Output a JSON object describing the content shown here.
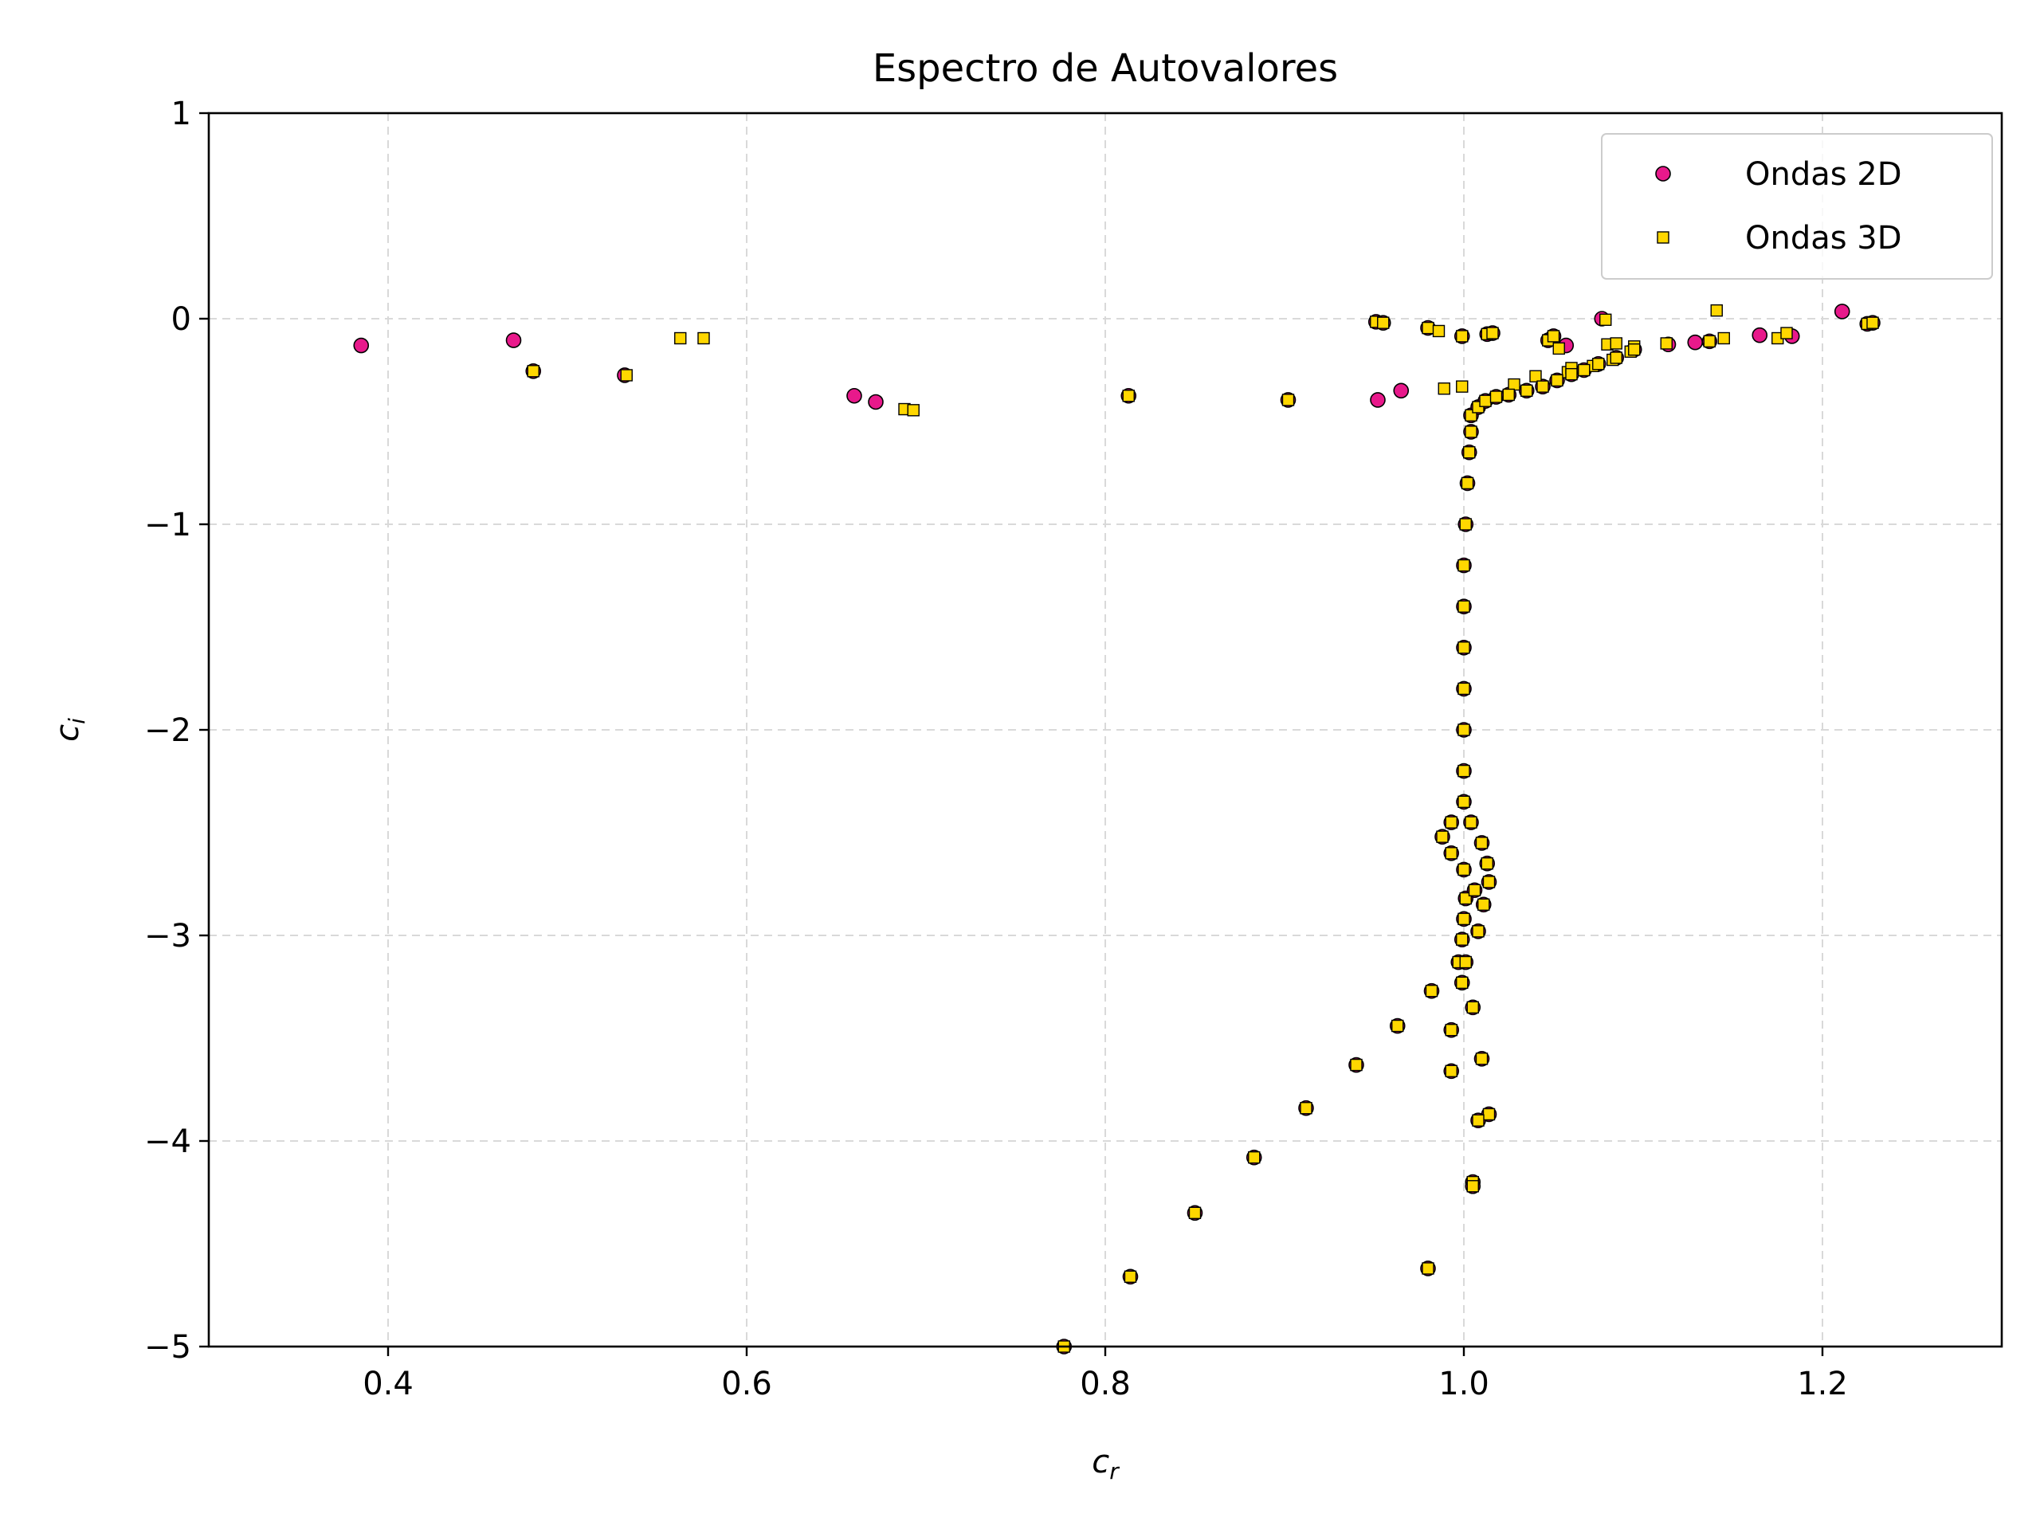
{
  "chart_data": {
    "type": "scatter",
    "title": "Espectro de Autovalores",
    "xlabel_base": "c",
    "xlabel_sub": "r",
    "ylabel_base": "c",
    "ylabel_sub": "i",
    "xlim": [
      0.3,
      1.3
    ],
    "ylim": [
      -5,
      1
    ],
    "xticks": [
      0.4,
      0.6,
      0.8,
      1.0,
      1.2
    ],
    "xtick_labels": [
      "0.4",
      "0.6",
      "0.8",
      "1.0",
      "1.2"
    ],
    "yticks": [
      -5,
      -4,
      -3,
      -2,
      -1,
      0,
      1
    ],
    "ytick_labels": [
      "−5",
      "−4",
      "−3",
      "−2",
      "−1",
      "0",
      "1"
    ],
    "grid": true,
    "legend_position": "top-right",
    "series": [
      {
        "name": "Ondas 2D",
        "marker": "circle",
        "color": "#e8198b",
        "edge_color": "#000000",
        "points": [
          [
            0.385,
            -0.13
          ],
          [
            0.47,
            -0.105
          ],
          [
            0.481,
            -0.255
          ],
          [
            0.532,
            -0.275
          ],
          [
            0.66,
            -0.375
          ],
          [
            0.672,
            -0.405
          ],
          [
            0.813,
            -0.375
          ],
          [
            0.902,
            -0.395
          ],
          [
            0.952,
            -0.395
          ],
          [
            0.965,
            -0.35
          ],
          [
            0.951,
            -0.015
          ],
          [
            0.955,
            -0.02
          ],
          [
            0.98,
            -0.045
          ],
          [
            0.999,
            -0.085
          ],
          [
            1.013,
            -0.075
          ],
          [
            1.016,
            -0.07
          ],
          [
            1.047,
            -0.105
          ],
          [
            1.05,
            -0.085
          ],
          [
            1.057,
            -0.13
          ],
          [
            1.077,
            0.0
          ],
          [
            1.114,
            -0.125
          ],
          [
            1.129,
            -0.115
          ],
          [
            1.137,
            -0.11
          ],
          [
            1.165,
            -0.08
          ],
          [
            1.183,
            -0.085
          ],
          [
            1.211,
            0.035
          ],
          [
            1.225,
            -0.025
          ],
          [
            1.228,
            -0.02
          ],
          [
            1.004,
            -0.47
          ],
          [
            1.008,
            -0.43
          ],
          [
            1.012,
            -0.4
          ],
          [
            1.018,
            -0.38
          ],
          [
            1.025,
            -0.37
          ],
          [
            1.035,
            -0.35
          ],
          [
            1.044,
            -0.33
          ],
          [
            1.052,
            -0.3
          ],
          [
            1.06,
            -0.27
          ],
          [
            1.067,
            -0.25
          ],
          [
            1.075,
            -0.22
          ],
          [
            1.085,
            -0.19
          ],
          [
            1.095,
            -0.15
          ],
          [
            1.004,
            -0.55
          ],
          [
            1.003,
            -0.65
          ],
          [
            1.002,
            -0.8
          ],
          [
            1.001,
            -1.0
          ],
          [
            1.0,
            -1.2
          ],
          [
            1.0,
            -1.4
          ],
          [
            1.0,
            -1.6
          ],
          [
            1.0,
            -1.8
          ],
          [
            1.0,
            -2.0
          ],
          [
            1.0,
            -2.2
          ],
          [
            1.0,
            -2.35
          ],
          [
            0.993,
            -2.45
          ],
          [
            0.988,
            -2.52
          ],
          [
            0.993,
            -2.6
          ],
          [
            1.0,
            -2.68
          ],
          [
            1.001,
            -2.82
          ],
          [
            1.0,
            -2.92
          ],
          [
            0.999,
            -3.02
          ],
          [
            0.997,
            -3.13
          ],
          [
            1.001,
            -3.13
          ],
          [
            0.999,
            -3.23
          ],
          [
            1.004,
            -2.45
          ],
          [
            1.01,
            -2.55
          ],
          [
            1.013,
            -2.65
          ],
          [
            1.014,
            -2.74
          ],
          [
            1.011,
            -2.85
          ],
          [
            1.008,
            -2.98
          ],
          [
            1.006,
            -2.78
          ],
          [
            0.982,
            -3.27
          ],
          [
            0.963,
            -3.44
          ],
          [
            0.94,
            -3.63
          ],
          [
            0.912,
            -3.84
          ],
          [
            0.883,
            -4.08
          ],
          [
            0.85,
            -4.35
          ],
          [
            0.814,
            -4.66
          ],
          [
            0.777,
            -5.0
          ],
          [
            0.993,
            -3.46
          ],
          [
            0.993,
            -3.66
          ],
          [
            1.005,
            -3.35
          ],
          [
            1.01,
            -3.6
          ],
          [
            1.014,
            -3.87
          ],
          [
            1.008,
            -3.9
          ],
          [
            1.005,
            -4.2
          ],
          [
            1.005,
            -4.22
          ],
          [
            0.98,
            -4.62
          ]
        ]
      },
      {
        "name": "Ondas 3D",
        "marker": "square",
        "color": "#ffd700",
        "edge_color": "#000000",
        "points": [
          [
            0.481,
            -0.255
          ],
          [
            0.533,
            -0.275
          ],
          [
            0.563,
            -0.095
          ],
          [
            0.576,
            -0.095
          ],
          [
            0.688,
            -0.44
          ],
          [
            0.693,
            -0.445
          ],
          [
            0.813,
            -0.375
          ],
          [
            0.902,
            -0.395
          ],
          [
            0.951,
            -0.015
          ],
          [
            0.955,
            -0.02
          ],
          [
            0.98,
            -0.045
          ],
          [
            0.986,
            -0.06
          ],
          [
            0.999,
            -0.085
          ],
          [
            1.013,
            -0.075
          ],
          [
            1.016,
            -0.07
          ],
          [
            1.047,
            -0.105
          ],
          [
            1.05,
            -0.085
          ],
          [
            1.053,
            -0.145
          ],
          [
            1.079,
            -0.005
          ],
          [
            1.08,
            -0.125
          ],
          [
            1.085,
            -0.12
          ],
          [
            1.095,
            -0.135
          ],
          [
            1.113,
            -0.12
          ],
          [
            1.137,
            -0.11
          ],
          [
            1.141,
            0.04
          ],
          [
            1.145,
            -0.095
          ],
          [
            1.175,
            -0.095
          ],
          [
            1.18,
            -0.07
          ],
          [
            1.225,
            -0.025
          ],
          [
            1.228,
            -0.02
          ],
          [
            0.989,
            -0.34
          ],
          [
            0.999,
            -0.33
          ],
          [
            1.028,
            -0.32
          ],
          [
            1.04,
            -0.28
          ],
          [
            1.058,
            -0.26
          ],
          [
            1.072,
            -0.23
          ],
          [
            1.083,
            -0.2
          ],
          [
            1.093,
            -0.16
          ],
          [
            1.06,
            -0.24
          ],
          [
            1.004,
            -0.47
          ],
          [
            1.008,
            -0.43
          ],
          [
            1.012,
            -0.4
          ],
          [
            1.018,
            -0.38
          ],
          [
            1.025,
            -0.37
          ],
          [
            1.035,
            -0.35
          ],
          [
            1.044,
            -0.33
          ],
          [
            1.052,
            -0.3
          ],
          [
            1.06,
            -0.27
          ],
          [
            1.067,
            -0.25
          ],
          [
            1.075,
            -0.22
          ],
          [
            1.085,
            -0.19
          ],
          [
            1.095,
            -0.15
          ],
          [
            1.004,
            -0.55
          ],
          [
            1.003,
            -0.65
          ],
          [
            1.002,
            -0.8
          ],
          [
            1.001,
            -1.0
          ],
          [
            1.0,
            -1.2
          ],
          [
            1.0,
            -1.4
          ],
          [
            1.0,
            -1.6
          ],
          [
            1.0,
            -1.8
          ],
          [
            1.0,
            -2.0
          ],
          [
            1.0,
            -2.2
          ],
          [
            1.0,
            -2.35
          ],
          [
            0.993,
            -2.45
          ],
          [
            0.988,
            -2.52
          ],
          [
            0.993,
            -2.6
          ],
          [
            1.0,
            -2.68
          ],
          [
            1.001,
            -2.82
          ],
          [
            1.0,
            -2.92
          ],
          [
            0.999,
            -3.02
          ],
          [
            0.997,
            -3.13
          ],
          [
            1.001,
            -3.13
          ],
          [
            0.999,
            -3.23
          ],
          [
            1.004,
            -2.45
          ],
          [
            1.01,
            -2.55
          ],
          [
            1.013,
            -2.65
          ],
          [
            1.014,
            -2.74
          ],
          [
            1.011,
            -2.85
          ],
          [
            1.008,
            -2.98
          ],
          [
            1.006,
            -2.78
          ],
          [
            0.982,
            -3.27
          ],
          [
            0.963,
            -3.44
          ],
          [
            0.94,
            -3.63
          ],
          [
            0.912,
            -3.84
          ],
          [
            0.883,
            -4.08
          ],
          [
            0.85,
            -4.35
          ],
          [
            0.814,
            -4.66
          ],
          [
            0.777,
            -5.0
          ],
          [
            0.993,
            -3.46
          ],
          [
            0.993,
            -3.66
          ],
          [
            1.005,
            -3.35
          ],
          [
            1.01,
            -3.6
          ],
          [
            1.014,
            -3.87
          ],
          [
            1.008,
            -3.9
          ],
          [
            1.005,
            -4.2
          ],
          [
            1.005,
            -4.22
          ],
          [
            0.98,
            -4.62
          ]
        ]
      }
    ]
  }
}
